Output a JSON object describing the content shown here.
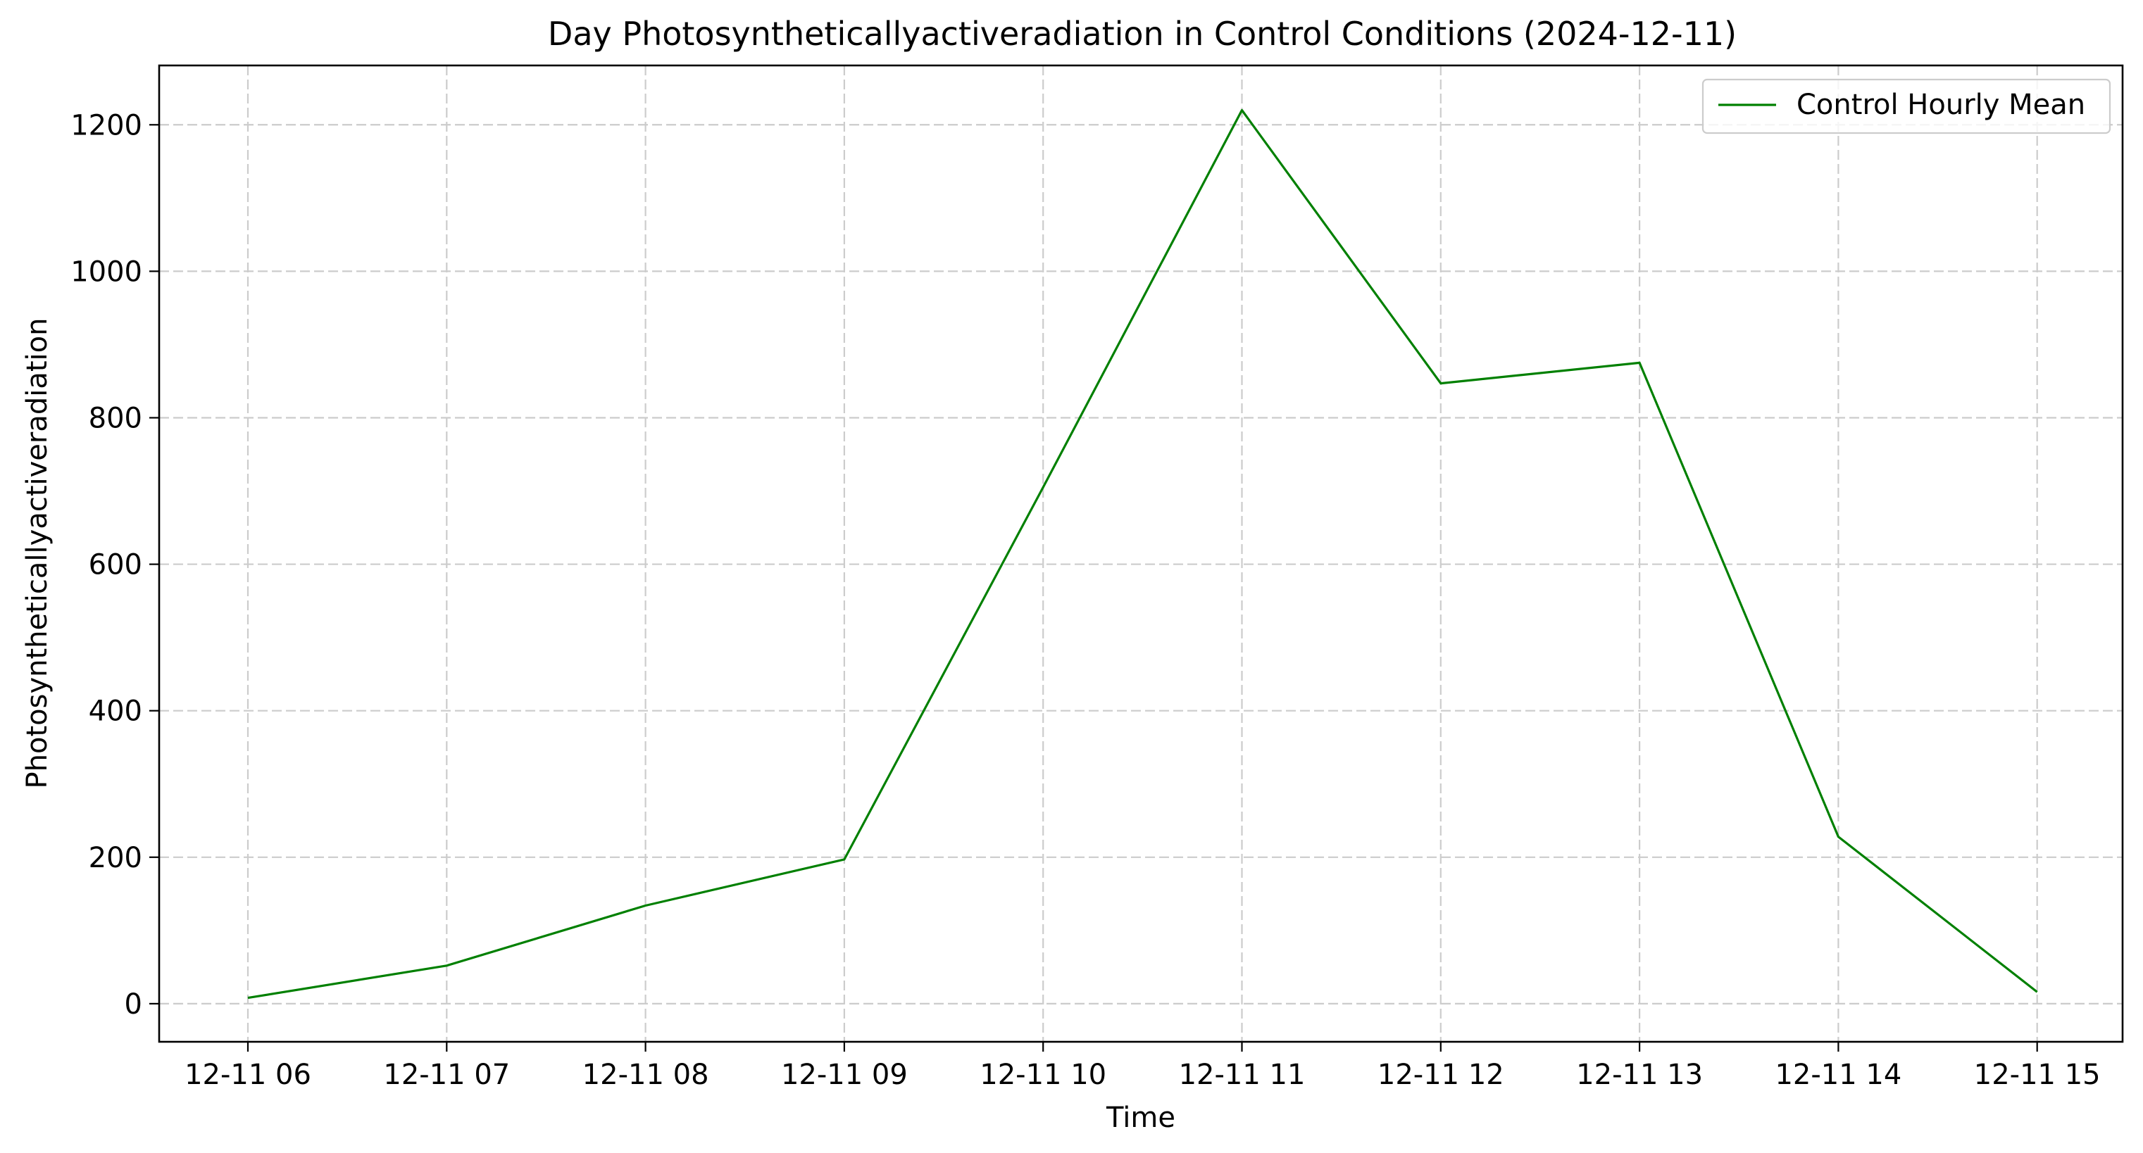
{
  "chart_data": {
    "type": "line",
    "title": "Day Photosyntheticallyactiveradiation in Control Conditions (2024-12-11)",
    "xlabel": "Time",
    "ylabel": "Photosyntheticallyactiveradiation",
    "categories": [
      "12-11 06",
      "12-11 07",
      "12-11 08",
      "12-11 09",
      "12-11 10",
      "12-11 11",
      "12-11 12",
      "12-11 13",
      "12-11 14",
      "12-11 15"
    ],
    "series": [
      {
        "name": "Control Hourly Mean",
        "color": "#008000",
        "values": [
          8,
          52,
          134,
          197,
          705,
          1220,
          847,
          875,
          228,
          16
        ]
      }
    ],
    "ylim": [
      -52,
      1281
    ],
    "yticks": [
      0,
      200,
      400,
      600,
      800,
      1000,
      1200
    ],
    "grid": true,
    "legend_position": "upper right"
  }
}
